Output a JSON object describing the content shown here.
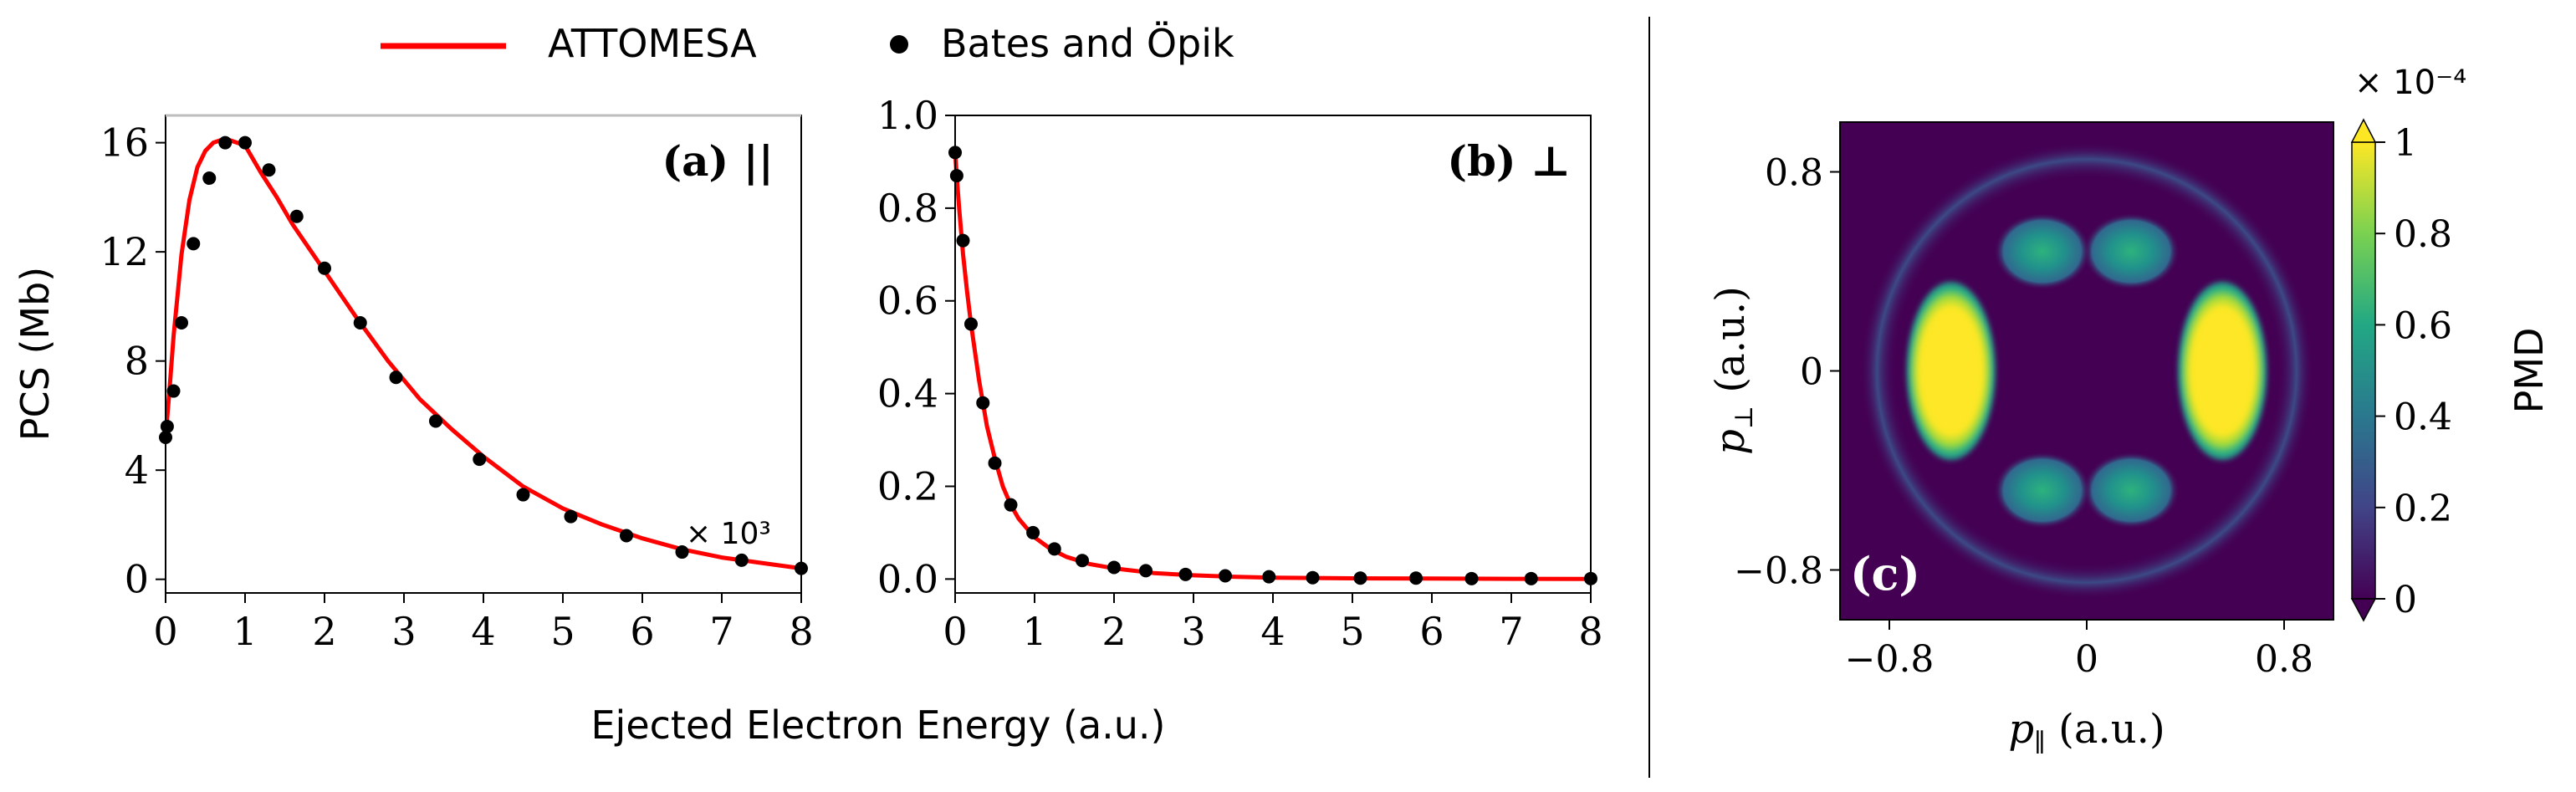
{
  "legend": {
    "items": [
      {
        "label": "ATTOMESA",
        "marker": "line",
        "color": "#ff0000"
      },
      {
        "label": "Bates and Öpik",
        "marker": "dot",
        "color": "#000000"
      }
    ]
  },
  "shared_xlabel": "Ejected Electron Energy (a.u.)",
  "chart_data": [
    {
      "type": "line",
      "panel_label": "(a) ||",
      "ylabel": "PCS (Mb)",
      "xlim": [
        0,
        8
      ],
      "ylim": [
        -0.5,
        17
      ],
      "xticks": [
        "0",
        "1",
        "2",
        "3",
        "4",
        "5",
        "6",
        "7",
        "8"
      ],
      "yticks": [
        "0",
        "4",
        "8",
        "12",
        "16"
      ],
      "xscale_note": "× 10³",
      "series": [
        {
          "name": "ATTOMESA",
          "style": "line",
          "color": "#ff0000",
          "x": [
            0,
            0.05,
            0.1,
            0.2,
            0.3,
            0.4,
            0.5,
            0.6,
            0.7,
            0.8,
            1.0,
            1.2,
            1.4,
            1.6,
            2.0,
            2.4,
            2.8,
            3.2,
            3.6,
            4.0,
            4.5,
            5.0,
            5.5,
            6.0,
            6.5,
            7.0,
            7.5,
            8.0
          ],
          "y": [
            5.2,
            7.0,
            8.9,
            11.9,
            13.9,
            15.1,
            15.7,
            16.0,
            16.1,
            16.1,
            15.9,
            14.9,
            14.0,
            13.0,
            11.3,
            9.6,
            8.0,
            6.6,
            5.5,
            4.5,
            3.4,
            2.6,
            2.0,
            1.5,
            1.1,
            0.8,
            0.6,
            0.4
          ]
        },
        {
          "name": "Bates and Öpik",
          "style": "scatter",
          "color": "#000000",
          "x": [
            0.0,
            0.02,
            0.1,
            0.2,
            0.35,
            0.55,
            0.75,
            1.0,
            1.3,
            1.65,
            2.0,
            2.45,
            2.9,
            3.4,
            3.95,
            4.5,
            5.1,
            5.8,
            6.5,
            7.25,
            8.0
          ],
          "y": [
            5.2,
            5.6,
            6.9,
            9.4,
            12.3,
            14.7,
            16.0,
            16.0,
            15.0,
            13.3,
            11.4,
            9.4,
            7.4,
            5.8,
            4.4,
            3.1,
            2.3,
            1.6,
            1.0,
            0.7,
            0.4
          ]
        }
      ]
    },
    {
      "type": "line",
      "panel_label": "(b) ⊥",
      "xlim": [
        0,
        8
      ],
      "ylim": [
        -0.03,
        1.0
      ],
      "xticks": [
        "0",
        "1",
        "2",
        "3",
        "4",
        "5",
        "6",
        "7",
        "8"
      ],
      "yticks": [
        "0.0",
        "0.2",
        "0.4",
        "0.6",
        "0.8",
        "1.0"
      ],
      "series": [
        {
          "name": "ATTOMESA",
          "style": "line",
          "color": "#ff0000",
          "x": [
            0,
            0.02,
            0.05,
            0.1,
            0.15,
            0.2,
            0.3,
            0.4,
            0.5,
            0.6,
            0.7,
            0.8,
            1.0,
            1.2,
            1.4,
            1.7,
            2.0,
            2.5,
            3.0,
            3.5,
            4.0,
            5.0,
            6.0,
            7.0,
            8.0
          ],
          "y": [
            0.92,
            0.87,
            0.8,
            0.7,
            0.62,
            0.55,
            0.43,
            0.33,
            0.26,
            0.2,
            0.16,
            0.13,
            0.09,
            0.065,
            0.048,
            0.032,
            0.023,
            0.013,
            0.008,
            0.005,
            0.003,
            0.0015,
            0.001,
            0.0005,
            0.0003
          ]
        },
        {
          "name": "Bates and Öpik",
          "style": "scatter",
          "color": "#000000",
          "x": [
            0.0,
            0.02,
            0.1,
            0.2,
            0.35,
            0.5,
            0.7,
            0.98,
            1.25,
            1.6,
            2.0,
            2.4,
            2.9,
            3.4,
            3.95,
            4.5,
            5.1,
            5.8,
            6.5,
            7.25,
            8.0
          ],
          "y": [
            0.92,
            0.87,
            0.73,
            0.55,
            0.38,
            0.25,
            0.16,
            0.1,
            0.065,
            0.04,
            0.025,
            0.018,
            0.01,
            0.007,
            0.005,
            0.003,
            0.002,
            0.002,
            0.001,
            0.001,
            0.001
          ]
        }
      ]
    },
    {
      "type": "heatmap",
      "panel_label": "(c)",
      "xlabel": "p∥ (a.u.)",
      "ylabel": "p⊥ (a.u.)",
      "xlim": [
        -1,
        1
      ],
      "ylim": [
        -1,
        1
      ],
      "xticks": [
        "−0.8",
        "0",
        "0.8"
      ],
      "yticks": [
        "−0.8",
        "0",
        "0.8"
      ],
      "colormap": "viridis",
      "colorbar": {
        "label": "PMD",
        "exponent": "× 10⁻⁴",
        "range": [
          0,
          1
        ],
        "ticks": [
          "0",
          "0.2",
          "0.4",
          "0.6",
          "0.8",
          "1"
        ]
      },
      "features": [
        {
          "kind": "lobe",
          "px": 0.55,
          "pz": 0.0,
          "intensity": 1.0
        },
        {
          "kind": "lobe",
          "px": -0.55,
          "pz": 0.0,
          "intensity": 1.0
        },
        {
          "kind": "blob",
          "px": 0.18,
          "pz": 0.48,
          "intensity": 0.55
        },
        {
          "kind": "blob",
          "px": -0.18,
          "pz": 0.48,
          "intensity": 0.55
        },
        {
          "kind": "blob",
          "px": 0.18,
          "pz": -0.48,
          "intensity": 0.55
        },
        {
          "kind": "blob",
          "px": -0.18,
          "pz": -0.48,
          "intensity": 0.55
        },
        {
          "kind": "ring",
          "radius": 0.9,
          "intensity": 0.18
        }
      ]
    }
  ]
}
